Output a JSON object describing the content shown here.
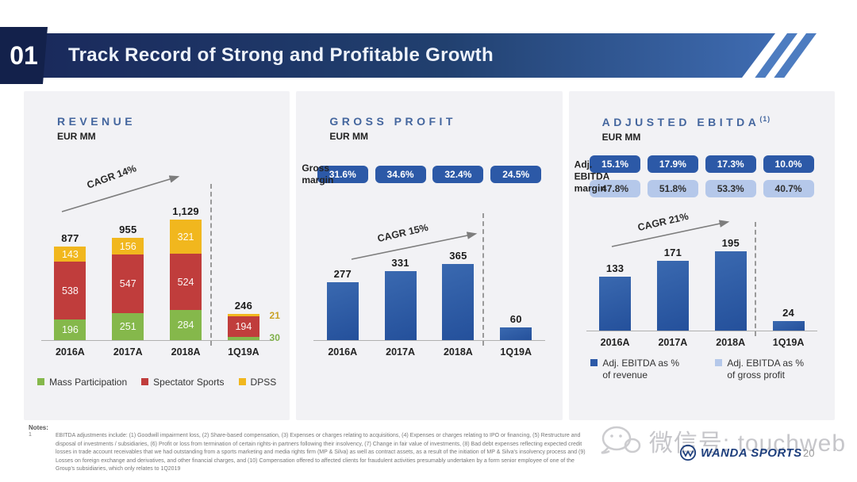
{
  "header": {
    "number": "01",
    "title": "Track Record of Strong and Profitable Growth"
  },
  "colors": {
    "banner_dark": "#1a2a5c",
    "banner_light": "#3f6cb2",
    "accent_blue": "#2c59a7",
    "badge_light_blue": "#b5c8ea",
    "green": "#85b84b",
    "red": "#c03d3c",
    "yellow": "#f1b71e"
  },
  "chart_data": [
    {
      "id": "revenue",
      "type": "bar",
      "subtype": "stacked",
      "title": "REVENUE",
      "unit": "EUR MM",
      "cagr_label": "CAGR 14%",
      "categories": [
        "2016A",
        "2017A",
        "2018A",
        "1Q19A"
      ],
      "totals": [
        "877",
        "955",
        "1,129",
        "246"
      ],
      "totals_numeric": [
        877,
        955,
        1129,
        246
      ],
      "series": [
        {
          "name": "Mass Participation",
          "color": "#85b84b",
          "values": [
            196,
            251,
            284,
            30
          ]
        },
        {
          "name": "Spectator Sports",
          "color": "#c03d3c",
          "values": [
            538,
            547,
            524,
            194
          ]
        },
        {
          "name": "DPSS",
          "color": "#f1b71e",
          "values": [
            143,
            156,
            321,
            21
          ]
        }
      ],
      "outside_labels": [
        {
          "col": 3,
          "pos": "top",
          "text": "21",
          "color": "#c9a227"
        },
        {
          "col": 3,
          "pos": "bottom",
          "text": "30",
          "color": "#7fb04a"
        }
      ],
      "legend": [
        {
          "label": "Mass Participation",
          "color": "#85b84b"
        },
        {
          "label": "Spectator Sports",
          "color": "#c03d3c"
        },
        {
          "label": "DPSS",
          "color": "#f1b71e"
        }
      ],
      "separator_after": "2018A"
    },
    {
      "id": "gross_profit",
      "type": "bar",
      "title": "GROSS PROFIT",
      "unit": "EUR MM",
      "cagr_label": "CAGR 15%",
      "margin_label": "Gross margin",
      "badge_rows": [
        {
          "variant": "dark",
          "values": [
            "31.6%",
            "34.6%",
            "32.4%",
            "24.5%"
          ]
        }
      ],
      "categories": [
        "2016A",
        "2017A",
        "2018A",
        "1Q19A"
      ],
      "values": [
        277,
        331,
        365,
        60
      ],
      "bar_color": "#2c59a7",
      "separator_after": "2018A"
    },
    {
      "id": "adjusted_ebitda",
      "type": "bar",
      "title": "ADJUSTED EBITDA",
      "title_sup": "(1)",
      "unit": "EUR MM",
      "cagr_label": "CAGR 21%",
      "margin_label": "Adj. EBITDA margin",
      "badge_rows": [
        {
          "variant": "dark",
          "values": [
            "15.1%",
            "17.9%",
            "17.3%",
            "10.0%"
          ]
        },
        {
          "variant": "light",
          "values": [
            "47.8%",
            "51.8%",
            "53.3%",
            "40.7%"
          ]
        }
      ],
      "categories": [
        "2016A",
        "2017A",
        "2018A",
        "1Q19A"
      ],
      "values": [
        133,
        171,
        195,
        24
      ],
      "bar_color": "#2c59a7",
      "legend": [
        {
          "label": "Adj. EBITDA as % of revenue",
          "color": "#2c59a7"
        },
        {
          "label": "Adj. EBITDA as % of gross profit",
          "color": "#b5c8ea"
        }
      ],
      "separator_after": "2018A"
    }
  ],
  "footer": {
    "notes_title": "Notes:",
    "note_number": "1",
    "note_text": "EBITDA adjustments include: (1) Goodwill impairment loss, (2) Share-based compensation, (3) Expenses or charges relating to acquisitions, (4) Expenses or charges relating to IPO or financing, (5) Restructure and disposal of investments / subsidiaries, (6) Profit or loss from termination of certain rights-in partners following their insolvency, (7) Change in fair value of investments, (8) Bad debt expenses reflecting expected credit losses in trade account receivables that we had outstanding from a sports marketing and media rights firm (MP & Silva) as well as contract assets, as a result of the initiation of MP & Silva's insolvency process and (9) Losses on foreign exchange and derivatives, and other financial charges, and (10) Compensation offered to affected clients for fraudulent activities presumably undertaken by a form senior employee of one of the Group's subsidiaries, which only relates to 1Q2019",
    "watermark": "微信号: touchweb",
    "logo_text": "WANDA SPORTS",
    "page_number": "20"
  }
}
